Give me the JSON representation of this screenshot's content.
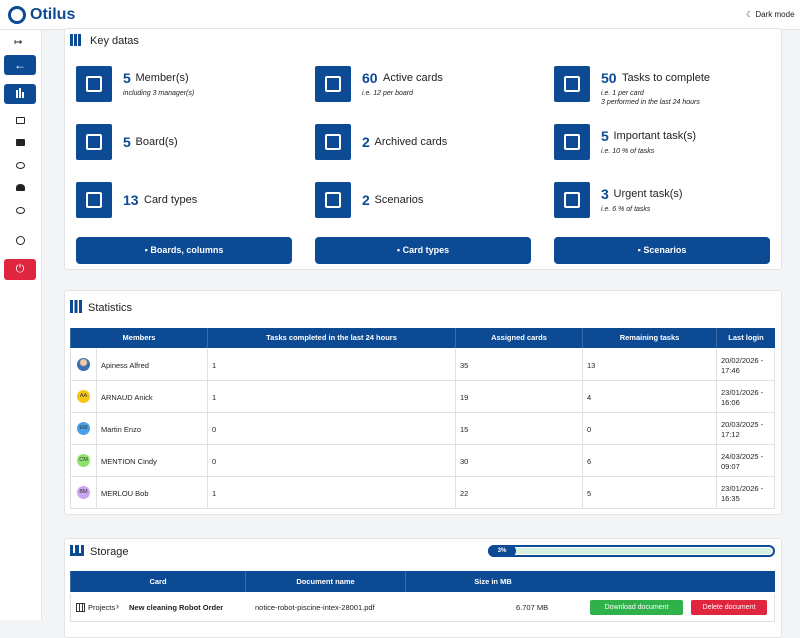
{
  "header": {
    "logo": "Otilus",
    "dark_mode": "Dark mode"
  },
  "key_datas": {
    "title": "Key datas",
    "items": [
      {
        "value": 5,
        "label": "Member(s)",
        "sub": [
          "including 3 manager(s)"
        ]
      },
      {
        "value": 60,
        "label": "Active cards",
        "sub": [
          "i.e. 12 per board"
        ]
      },
      {
        "value": 50,
        "label": "Tasks to complete",
        "sub": [
          "i.e. 1 per card",
          "3 performed in the last 24 hours"
        ]
      },
      {
        "value": 5,
        "label": "Board(s)",
        "sub": []
      },
      {
        "value": 2,
        "label": "Archived cards",
        "sub": []
      },
      {
        "value": 5,
        "label": "Important task(s)",
        "sub": [
          "i.e. 10 % of tasks"
        ]
      },
      {
        "value": 13,
        "label": "Card types",
        "sub": []
      },
      {
        "value": 2,
        "label": "Scenarios",
        "sub": []
      },
      {
        "value": 3,
        "label": "Urgent task(s)",
        "sub": [
          "i.e. 6 % of tasks"
        ]
      }
    ],
    "buttons": [
      "Boards, columns",
      "Card types",
      "Scenarios"
    ]
  },
  "statistics": {
    "title": "Statistics",
    "columns": [
      "Members",
      "Tasks completed in the last 24 hours",
      "Assigned cards",
      "Remaining tasks",
      "Last login"
    ],
    "rows": [
      {
        "name": "Apiness Alfred",
        "tasks": 1,
        "assigned": 35,
        "remaining": 13,
        "last_login": "20/02/2026 - 17:46"
      },
      {
        "initials": "AA",
        "avatar_color": "#f5c518",
        "name": "ARNAUD Anick",
        "tasks": 1,
        "assigned": 19,
        "remaining": 4,
        "last_login": "23/01/2026 - 16:06"
      },
      {
        "initials": "EM",
        "avatar_color": "#4a9fe8",
        "name": "Martin Enzo",
        "tasks": 0,
        "assigned": 15,
        "remaining": 0,
        "last_login": "20/03/2025 - 17:12"
      },
      {
        "initials": "CM",
        "avatar_color": "#8fe36b",
        "name": "MENTION Cindy",
        "tasks": 0,
        "assigned": 30,
        "remaining": 6,
        "last_login": "24/03/2025 - 09:07"
      },
      {
        "initials": "BM",
        "avatar_color": "#c9a6ef",
        "name": "MERLOU Bob",
        "tasks": 1,
        "assigned": 22,
        "remaining": 5,
        "last_login": "23/01/2026 - 16:35"
      }
    ]
  },
  "storage": {
    "title": "Storage",
    "progress": {
      "value": 3,
      "label": "3%"
    },
    "columns": [
      "Card",
      "Document name",
      "Size in MB"
    ],
    "rows": [
      {
        "path": [
          "Projects",
          "New cleaning Robot Order"
        ],
        "document": "notice-robot-piscine-intex-28001.pdf",
        "size": "6.707 MB",
        "actions": [
          "Download document",
          "Delete document"
        ]
      }
    ]
  }
}
